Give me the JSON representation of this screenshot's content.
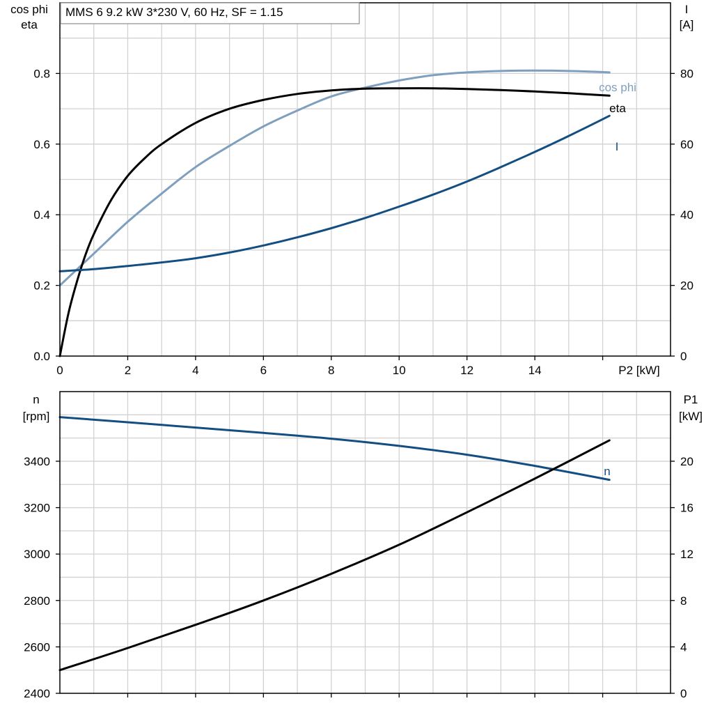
{
  "chart_data": [
    {
      "type": "line",
      "title": "MMS 6   9.2 kW   3*230 V, 60 Hz, SF = 1.15",
      "xlabel": "P2 [kW]",
      "ylabel_left_line1": "cos phi",
      "ylabel_left_line2": "eta",
      "ylabel_right_line1": "I",
      "ylabel_right_line2": "[A]",
      "xlim": [
        0,
        18
      ],
      "ylim_left": [
        0,
        1.0
      ],
      "ylim_right": [
        0,
        100
      ],
      "x_ticks": [
        "0",
        "2",
        "4",
        "6",
        "8",
        "10",
        "12",
        "14"
      ],
      "y_ticks_left": [
        "0.0",
        "0.2",
        "0.4",
        "0.6",
        "0.8"
      ],
      "y_ticks_right": [
        "0",
        "20",
        "40",
        "60",
        "80"
      ],
      "grid": true,
      "series": [
        {
          "name": "cos phi",
          "axis": "left",
          "color": "#7f9fbf",
          "x": [
            0,
            1,
            2,
            3,
            4,
            5,
            6,
            7,
            8,
            9,
            10,
            11,
            12,
            13,
            14,
            15,
            16.2
          ],
          "y": [
            0.2,
            0.29,
            0.38,
            0.46,
            0.535,
            0.595,
            0.65,
            0.695,
            0.735,
            0.76,
            0.78,
            0.795,
            0.803,
            0.807,
            0.808,
            0.807,
            0.803
          ]
        },
        {
          "name": "eta",
          "axis": "left",
          "color": "#000000",
          "x": [
            0,
            0.25,
            0.5,
            0.75,
            1,
            1.5,
            2,
            2.5,
            3,
            4,
            5,
            6,
            7,
            8,
            9,
            10,
            11,
            12,
            13,
            14,
            15,
            16.2
          ],
          "y": [
            0.0,
            0.12,
            0.21,
            0.285,
            0.345,
            0.44,
            0.51,
            0.56,
            0.6,
            0.66,
            0.7,
            0.725,
            0.742,
            0.752,
            0.757,
            0.758,
            0.758,
            0.756,
            0.753,
            0.749,
            0.744,
            0.737
          ]
        },
        {
          "name": "I",
          "axis": "right",
          "color": "#134e82",
          "x": [
            0,
            1,
            2,
            3,
            4,
            5,
            6,
            7,
            8,
            9,
            10,
            11,
            12,
            13,
            14,
            15,
            16.2
          ],
          "y": [
            24,
            24.6,
            25.5,
            26.5,
            27.7,
            29.3,
            31.3,
            33.6,
            36.2,
            39.1,
            42.3,
            45.7,
            49.4,
            53.5,
            57.8,
            62.3,
            68.0
          ]
        }
      ]
    },
    {
      "type": "line",
      "title": "",
      "xlabel": "",
      "ylabel_left_line1": "n",
      "ylabel_left_line2": "[rpm]",
      "ylabel_right_line1": "P1",
      "ylabel_right_line2": "[kW]",
      "xlim": [
        0,
        18
      ],
      "ylim_left": [
        2400,
        3700
      ],
      "ylim_right": [
        0,
        26
      ],
      "y_ticks_left": [
        "2400",
        "2600",
        "2800",
        "3000",
        "3200",
        "3400"
      ],
      "y_ticks_right": [
        "0",
        "4",
        "8",
        "12",
        "16",
        "20"
      ],
      "grid": true,
      "series": [
        {
          "name": "n",
          "axis": "left",
          "color": "#134e82",
          "x": [
            0,
            2,
            4,
            6,
            8,
            10,
            12,
            14,
            16.2
          ],
          "y": [
            3590,
            3568,
            3545,
            3522,
            3497,
            3466,
            3428,
            3380,
            3320
          ]
        },
        {
          "name": "",
          "axis": "right",
          "color": "#000000",
          "x": [
            0,
            2,
            4,
            6,
            8,
            10,
            12,
            14,
            16.2
          ],
          "y": [
            2.0,
            3.9,
            5.9,
            8.0,
            10.3,
            12.8,
            15.6,
            18.5,
            21.8
          ]
        }
      ]
    }
  ]
}
